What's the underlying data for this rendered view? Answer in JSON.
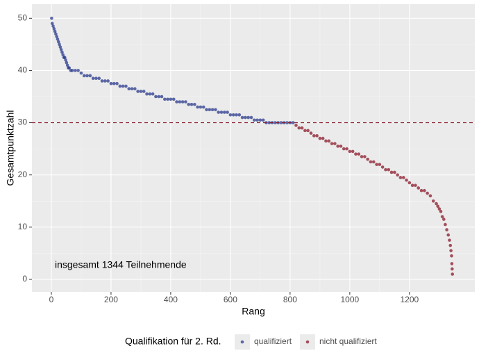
{
  "chart_data": {
    "type": "scatter",
    "xlabel": "Rang",
    "ylabel": "Gesamtpunktzahl",
    "annotation": "insgesamt 1344 Teilnehmende",
    "hline": 30,
    "hline_color": "#8b1a2b",
    "legend_title": "Qualifikation für 2. Rd.",
    "xlim": [
      -65,
      1419
    ],
    "ylim": [
      -2.4,
      52.7
    ],
    "xticks": [
      0,
      200,
      400,
      600,
      800,
      1000,
      1200
    ],
    "yticks": [
      0,
      10,
      20,
      30,
      40,
      50
    ],
    "grid": true,
    "series": [
      {
        "name": "qualifiziert",
        "color": "#2a3a8c",
        "x": [
          1,
          3,
          6,
          9,
          12,
          15,
          18,
          21,
          24,
          27,
          30,
          33,
          36,
          39,
          42,
          45,
          48,
          51,
          54,
          57,
          60,
          65,
          70,
          80,
          90,
          100,
          110,
          120,
          130,
          140,
          150,
          160,
          170,
          180,
          190,
          200,
          210,
          220,
          230,
          240,
          250,
          260,
          270,
          280,
          290,
          300,
          310,
          320,
          330,
          340,
          350,
          360,
          370,
          380,
          390,
          400,
          410,
          420,
          430,
          440,
          450,
          460,
          470,
          480,
          490,
          500,
          510,
          520,
          530,
          540,
          550,
          560,
          570,
          580,
          590,
          600,
          610,
          620,
          630,
          640,
          650,
          660,
          670,
          680,
          690,
          700,
          710,
          720,
          730,
          740,
          750,
          760,
          770,
          780,
          790,
          800,
          810
        ],
        "values": [
          50,
          49,
          48.5,
          48,
          47.5,
          47,
          46.5,
          46,
          45.5,
          45,
          44.5,
          44,
          43.5,
          43,
          42.5,
          42.5,
          42,
          41.5,
          41,
          40.5,
          40.5,
          40,
          40,
          40,
          40,
          39.5,
          39,
          39,
          39,
          38.5,
          38.5,
          38.5,
          38,
          38,
          38,
          37.5,
          37.5,
          37.5,
          37,
          37,
          37,
          36.5,
          36.5,
          36.5,
          36,
          36,
          36,
          35.5,
          35.5,
          35.5,
          35,
          35,
          35,
          34.5,
          34.5,
          34.5,
          34.5,
          34,
          34,
          34,
          34,
          33.5,
          33.5,
          33.5,
          33,
          33,
          33,
          32.5,
          32.5,
          32.5,
          32.5,
          32,
          32,
          32,
          32,
          31.5,
          31.5,
          31.5,
          31.5,
          31,
          31,
          31,
          31,
          30.5,
          30.5,
          30.5,
          30.5,
          30,
          30,
          30,
          30,
          30,
          30,
          30,
          30,
          30,
          30
        ]
      },
      {
        "name": "nicht qualifiziert",
        "color": "#8b1a2b",
        "x": [
          820,
          830,
          840,
          850,
          860,
          870,
          880,
          890,
          900,
          910,
          920,
          930,
          940,
          950,
          960,
          970,
          980,
          990,
          1000,
          1010,
          1020,
          1030,
          1040,
          1050,
          1060,
          1070,
          1080,
          1090,
          1100,
          1110,
          1120,
          1130,
          1140,
          1150,
          1160,
          1170,
          1180,
          1190,
          1200,
          1210,
          1220,
          1230,
          1240,
          1250,
          1260,
          1270,
          1280,
          1290,
          1295,
          1300,
          1305,
          1310,
          1315,
          1320,
          1325,
          1330,
          1334,
          1337,
          1339,
          1341,
          1342,
          1343,
          1344
        ],
        "values": [
          29.5,
          29,
          29,
          28.5,
          28.5,
          28,
          27.5,
          27.5,
          27,
          27,
          26.5,
          26.5,
          26,
          26,
          25.5,
          25.5,
          25,
          25,
          24.5,
          24.5,
          24,
          24,
          23.5,
          23.5,
          23,
          22.5,
          22.5,
          22,
          22,
          21.5,
          21,
          21,
          20.5,
          20.5,
          20,
          19.5,
          19.5,
          19,
          18.5,
          18,
          18,
          17.5,
          17,
          17,
          16.5,
          16,
          15,
          14.5,
          14,
          13.5,
          13,
          12,
          11.5,
          10.5,
          9.5,
          8.5,
          7.5,
          6.5,
          5.5,
          4.5,
          3,
          2,
          1
        ]
      }
    ]
  }
}
